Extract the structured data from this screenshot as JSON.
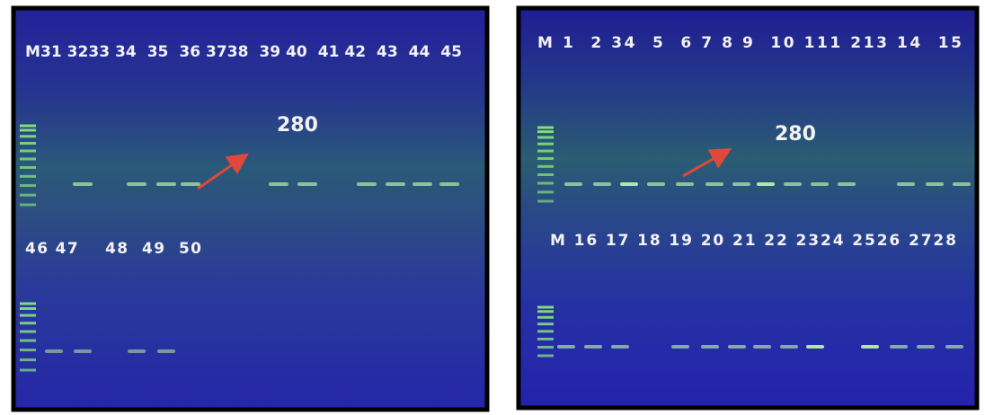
{
  "panels": [
    {
      "top_labels": "M31 3233 34  35  36 3738  39 40  41 42  43  44  45",
      "size_label": "280",
      "bottom_labels": "46 47    48  49  50"
    },
    {
      "top_labels": "M 1  2 34  5  6 7 8 9  10 111 213 14  15",
      "size_label": "280",
      "bottom_labels": "M 16 17 18 19 20 21 22 2324 2526 2728"
    }
  ]
}
